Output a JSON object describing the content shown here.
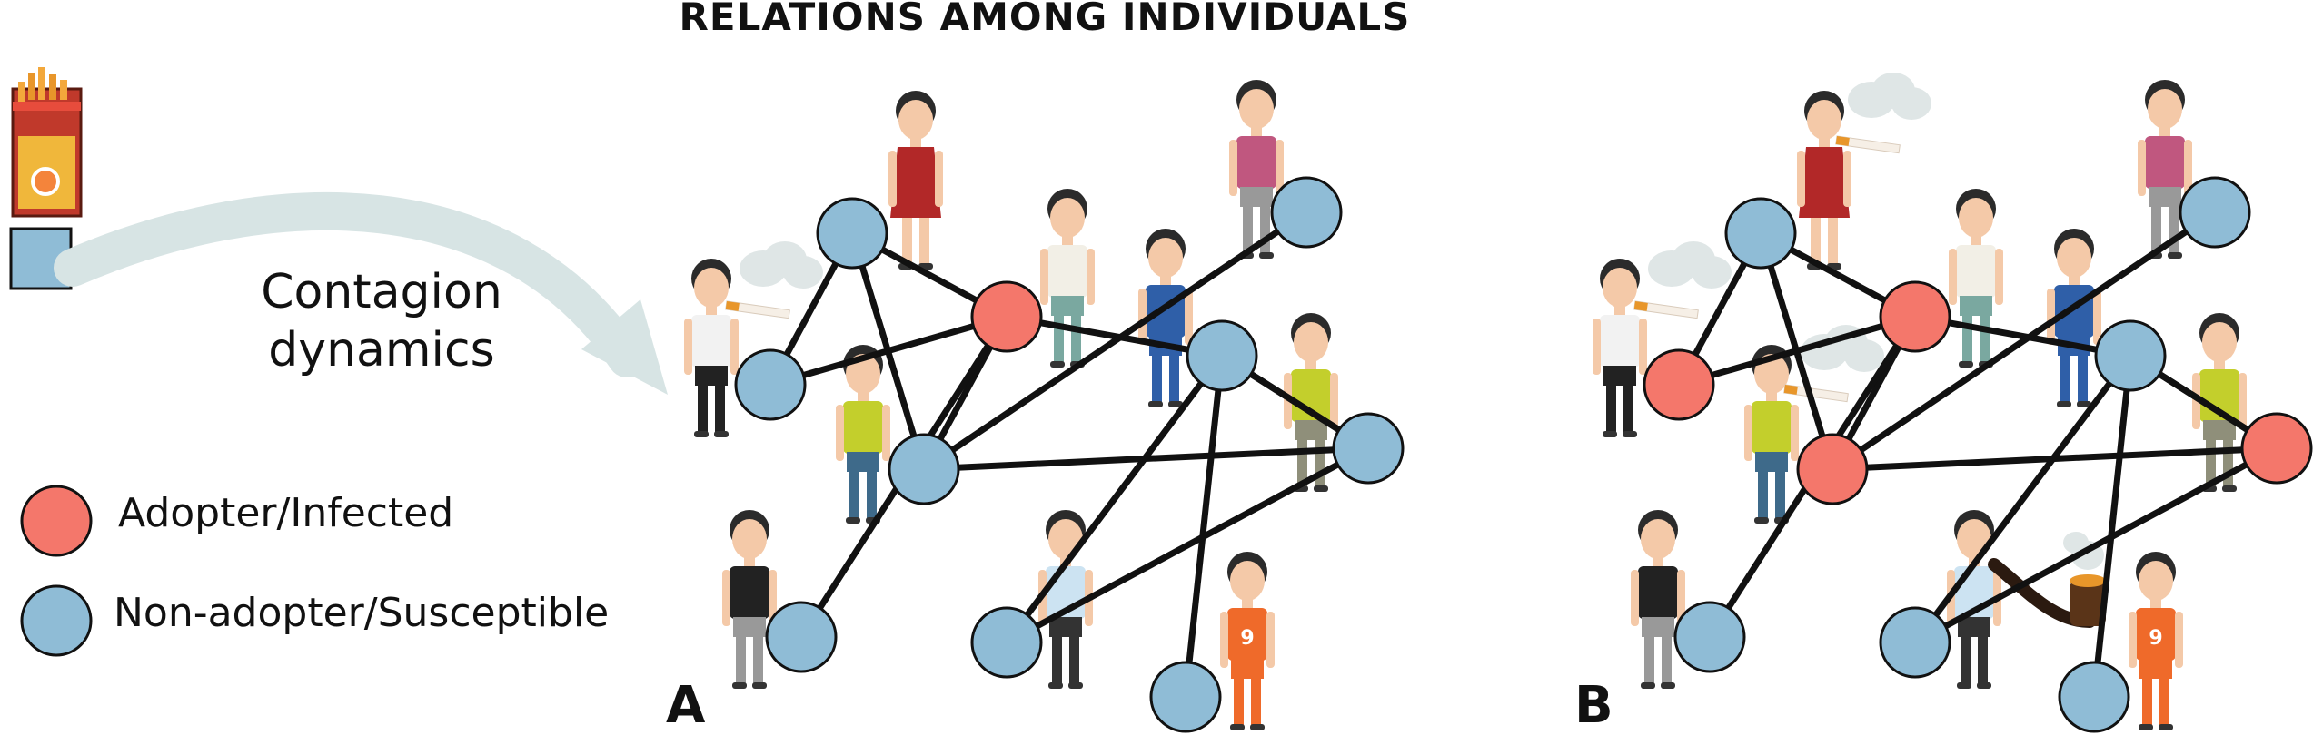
{
  "title": "RELATIONS AMONG INDIVIDUALS",
  "contagion_label_line1": "Contagion",
  "contagion_label_line2": "dynamics",
  "legend": [
    {
      "label": "Adopter/Infected",
      "color": "#f4776b"
    },
    {
      "label": "Non-adopter/Susceptible",
      "color": "#8fbcd6"
    }
  ],
  "panels": [
    {
      "label": "A"
    },
    {
      "label": "B"
    }
  ],
  "colors": {
    "infected": "#f4776b",
    "susceptible": "#8fbcd6",
    "edge": "#111111",
    "arrow": "#d7e4e4"
  },
  "network": {
    "edges": [
      [
        0,
        1
      ],
      [
        0,
        2
      ],
      [
        1,
        2
      ],
      [
        1,
        3
      ],
      [
        2,
        3
      ],
      [
        2,
        4
      ],
      [
        2,
        5
      ],
      [
        3,
        6
      ],
      [
        3,
        7
      ],
      [
        5,
        7
      ],
      [
        5,
        8
      ],
      [
        5,
        9
      ],
      [
        7,
        8
      ],
      [
        7,
        10
      ],
      [
        5,
        10
      ]
    ],
    "panel_a_states": [
      "S",
      "S",
      "I",
      "S",
      "S",
      "S",
      "S",
      "S",
      "S",
      "S",
      "S"
    ],
    "panel_b_states": [
      "I",
      "S",
      "I",
      "I",
      "S",
      "S",
      "S",
      "I",
      "S",
      "S",
      "S"
    ]
  },
  "shirt_number": "9"
}
